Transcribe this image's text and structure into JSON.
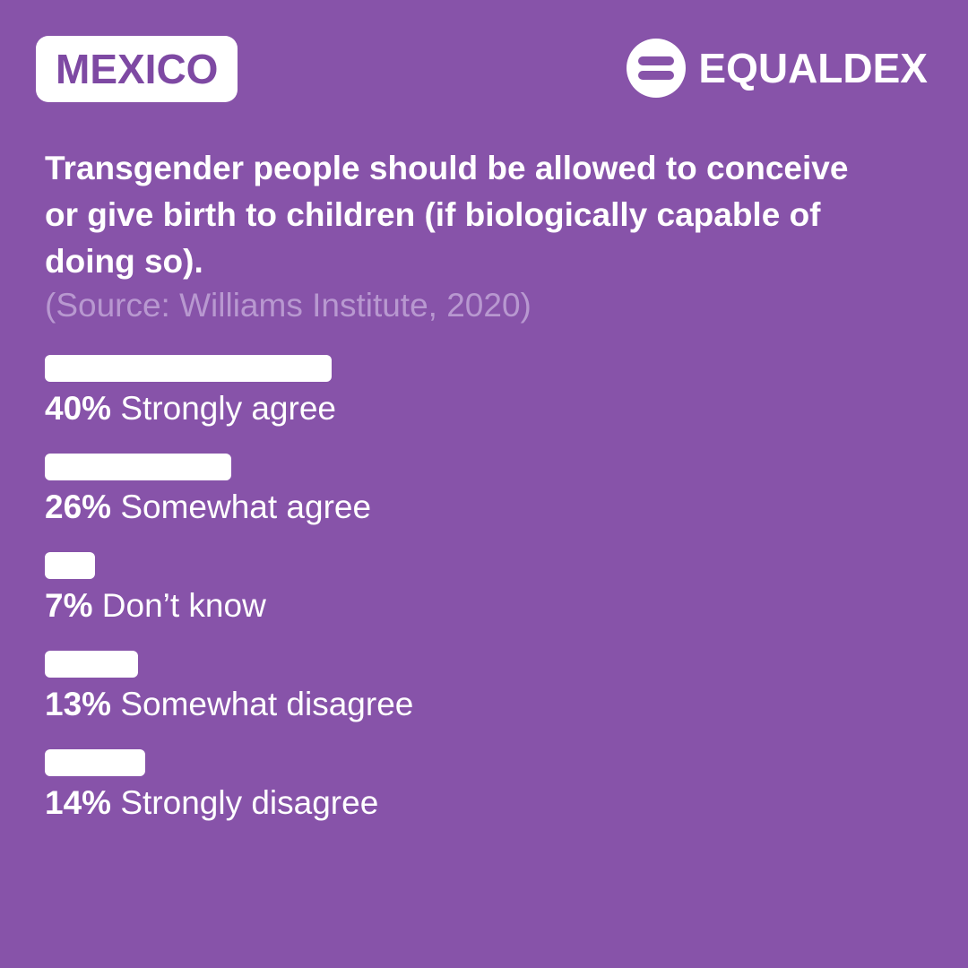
{
  "header": {
    "country": "MEXICO",
    "brand": "EQUALDEX",
    "brand_icon": "equaldex-logo-icon"
  },
  "question": "Transgender people should be allowed to conceive or give birth to children (if biologically capable of doing so).",
  "source": "(Source: Williams Institute, 2020)",
  "colors": {
    "background": "#8753A9",
    "badge_text": "#7E49A3",
    "bar": "#FFFFFF",
    "source_text": "#B898D0"
  },
  "chart_data": {
    "type": "bar",
    "orientation": "horizontal",
    "categories": [
      "Strongly agree",
      "Somewhat agree",
      "Don’t know",
      "Somewhat disagree",
      "Strongly disagree"
    ],
    "values": [
      40,
      26,
      7,
      13,
      14
    ],
    "value_labels": [
      "40%",
      "26%",
      "7%",
      "13%",
      "14%"
    ],
    "unit": "%",
    "xlim": [
      0,
      100
    ],
    "grid": false,
    "legend": "none"
  }
}
